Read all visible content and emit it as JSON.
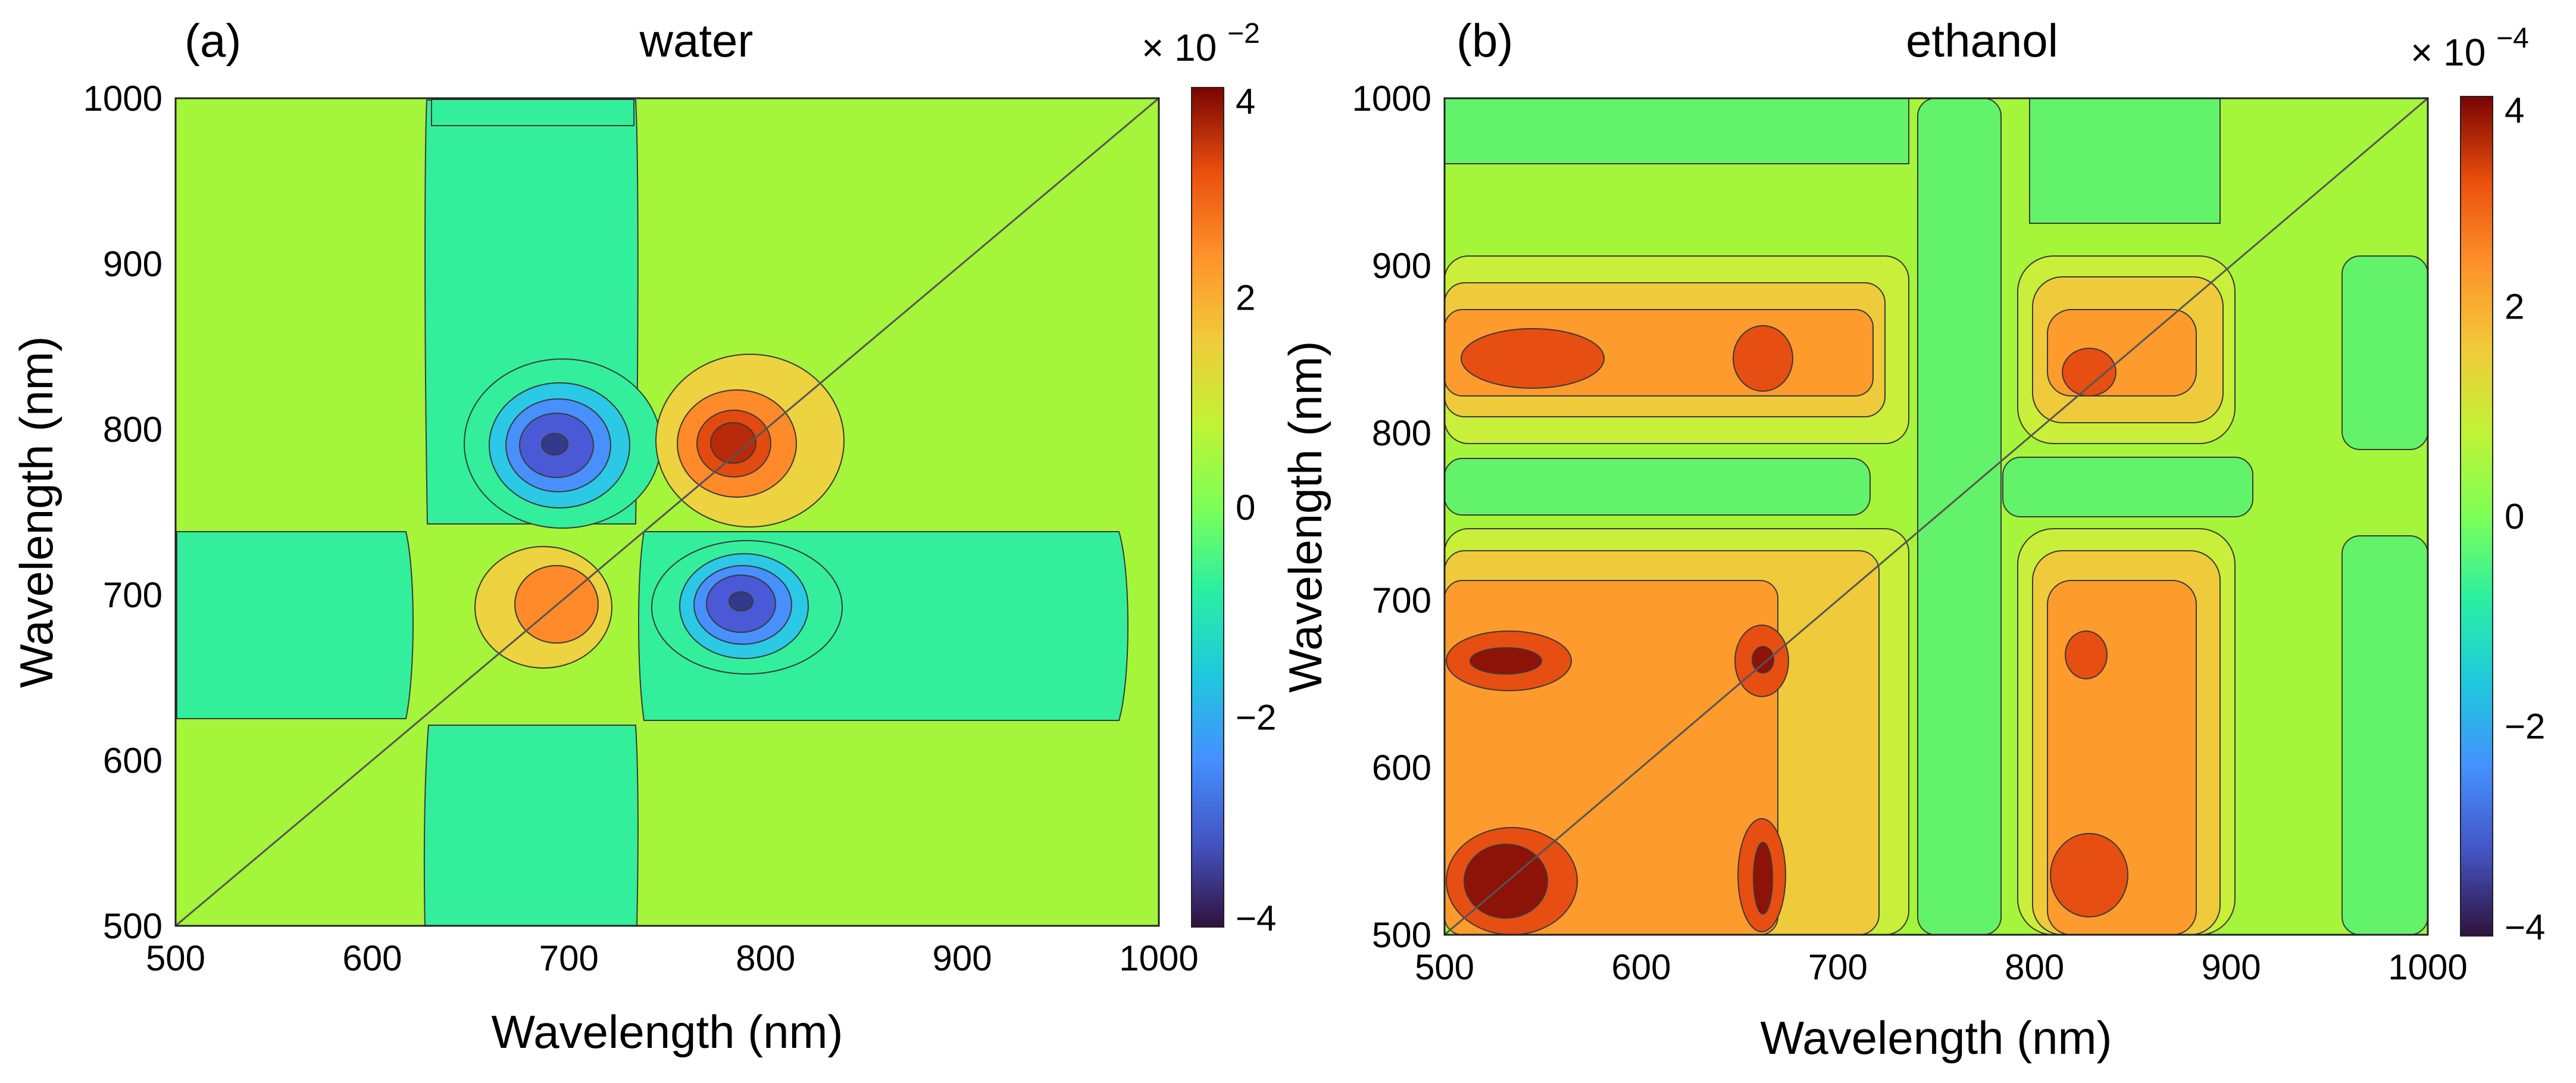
{
  "chart_data": [
    {
      "type": "heatmap",
      "panel_label": "(a)",
      "title": "water",
      "xlabel": "Wavelength (nm)",
      "ylabel": "Wavelength (nm)",
      "xlim": [
        500,
        1000
      ],
      "ylim": [
        500,
        1000
      ],
      "x_ticks": [
        500,
        600,
        700,
        800,
        900,
        1000
      ],
      "y_ticks": [
        500,
        600,
        700,
        800,
        900,
        1000
      ],
      "colorbar": {
        "range": [
          -4,
          4
        ],
        "ticks": [
          4,
          2,
          0,
          -2,
          -4
        ],
        "tick_labels": [
          "4",
          "2",
          "0",
          "−2",
          "−4"
        ],
        "multiplier_base": "× 10",
        "multiplier_exp": "−2"
      },
      "diagonal_line": true,
      "features": [
        {
          "kind": "peak",
          "x": 790,
          "y": 790,
          "value": 3.3
        },
        {
          "kind": "peak",
          "x": 700,
          "y": 700,
          "value": 2.4
        },
        {
          "kind": "valley",
          "x": 700,
          "y": 790,
          "value": -3.3
        },
        {
          "kind": "valley",
          "x": 790,
          "y": 700,
          "value": -3.3
        },
        {
          "kind": "band",
          "x_range": [
            625,
            740
          ],
          "y_range": [
            500,
            1000
          ],
          "value": -0.5
        },
        {
          "kind": "band",
          "x_range": [
            500,
            1000
          ],
          "y_range": [
            625,
            740
          ],
          "value": -0.5
        }
      ]
    },
    {
      "type": "heatmap",
      "panel_label": "(b)",
      "title": "ethanol",
      "xlabel": "Wavelength (nm)",
      "ylabel": "Wavelength (nm)",
      "xlim": [
        500,
        1000
      ],
      "ylim": [
        500,
        1000
      ],
      "x_ticks": [
        500,
        600,
        700,
        800,
        900,
        1000
      ],
      "y_ticks": [
        500,
        600,
        700,
        800,
        900,
        1000
      ],
      "colorbar": {
        "range": [
          -4,
          4
        ],
        "ticks": [
          4,
          2,
          0,
          -2,
          -4
        ],
        "tick_labels": [
          "4",
          "2",
          "0",
          "−2",
          "−4"
        ],
        "multiplier_base": "× 10",
        "multiplier_exp": "−4"
      },
      "diagonal_line": true,
      "features": [
        {
          "kind": "peak",
          "x": 535,
          "y": 535,
          "value": 4.0
        },
        {
          "kind": "peak",
          "x": 535,
          "y": 660,
          "value": 3.6
        },
        {
          "kind": "peak",
          "x": 668,
          "y": 535,
          "value": 3.6
        },
        {
          "kind": "peak",
          "x": 668,
          "y": 660,
          "value": 3.2
        },
        {
          "kind": "peak",
          "x": 838,
          "y": 828,
          "value": 2.6
        },
        {
          "kind": "peak",
          "x": 540,
          "y": 835,
          "value": 2.7
        },
        {
          "kind": "peak",
          "x": 838,
          "y": 535,
          "value": 2.8
        },
        {
          "kind": "peak",
          "x": 838,
          "y": 665,
          "value": 2.5
        }
      ]
    }
  ]
}
